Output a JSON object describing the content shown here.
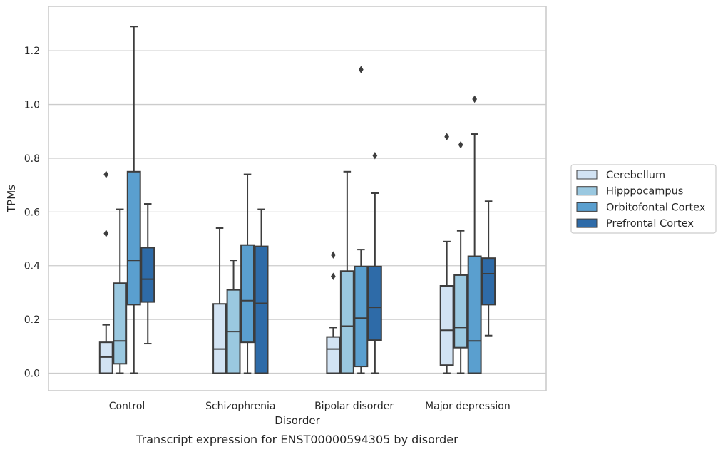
{
  "chart_data": {
    "type": "box",
    "xlabel": "Disorder",
    "ylabel": "TPMs",
    "caption": "Transcript expression for ENST00000594305 by disorder",
    "ylim": [
      -0.065,
      1.365
    ],
    "yticks": [
      0.0,
      0.2,
      0.4,
      0.6,
      0.8,
      1.0,
      1.2
    ],
    "grid": true,
    "legend_position": "right",
    "categories": [
      "Control",
      "Schizophrenia",
      "Bipolar disorder",
      "Major depression"
    ],
    "series": [
      {
        "name": "Cerebellum",
        "color": "#d2e3f3",
        "boxes": [
          {
            "whislo": 0.0,
            "q1": 0.0,
            "med": 0.06,
            "q3": 0.115,
            "whishi": 0.18,
            "fliers": [
              0.52,
              0.74
            ]
          },
          {
            "whislo": 0.0,
            "q1": 0.0,
            "med": 0.09,
            "q3": 0.258,
            "whishi": 0.54,
            "fliers": []
          },
          {
            "whislo": 0.0,
            "q1": 0.0,
            "med": 0.09,
            "q3": 0.135,
            "whishi": 0.17,
            "fliers": [
              0.36,
              0.44
            ]
          },
          {
            "whislo": 0.0,
            "q1": 0.03,
            "med": 0.16,
            "q3": 0.325,
            "whishi": 0.49,
            "fliers": [
              0.88
            ]
          }
        ]
      },
      {
        "name": "Hipppocampus",
        "color": "#9ac8e0",
        "boxes": [
          {
            "whislo": 0.0,
            "q1": 0.035,
            "med": 0.12,
            "q3": 0.335,
            "whishi": 0.61,
            "fliers": []
          },
          {
            "whislo": 0.0,
            "q1": 0.0,
            "med": 0.155,
            "q3": 0.31,
            "whishi": 0.42,
            "fliers": []
          },
          {
            "whislo": 0.0,
            "q1": 0.0,
            "med": 0.175,
            "q3": 0.38,
            "whishi": 0.75,
            "fliers": []
          },
          {
            "whislo": 0.0,
            "q1": 0.095,
            "med": 0.17,
            "q3": 0.365,
            "whishi": 0.53,
            "fliers": [
              0.85
            ]
          }
        ]
      },
      {
        "name": "Orbitofontal Cortex",
        "color": "#5a9fcf",
        "boxes": [
          {
            "whislo": 0.0,
            "q1": 0.255,
            "med": 0.42,
            "q3": 0.75,
            "whishi": 1.29,
            "fliers": []
          },
          {
            "whislo": 0.0,
            "q1": 0.115,
            "med": 0.27,
            "q3": 0.477,
            "whishi": 0.74,
            "fliers": []
          },
          {
            "whislo": 0.0,
            "q1": 0.025,
            "med": 0.205,
            "q3": 0.397,
            "whishi": 0.46,
            "fliers": [
              1.13
            ]
          },
          {
            "whislo": 0.0,
            "q1": 0.0,
            "med": 0.12,
            "q3": 0.435,
            "whishi": 0.89,
            "fliers": [
              1.02
            ]
          }
        ]
      },
      {
        "name": "Prefrontal Cortex",
        "color": "#2e6ba8",
        "boxes": [
          {
            "whislo": 0.11,
            "q1": 0.265,
            "med": 0.35,
            "q3": 0.467,
            "whishi": 0.63,
            "fliers": []
          },
          {
            "whislo": 0.0,
            "q1": 0.0,
            "med": 0.26,
            "q3": 0.472,
            "whishi": 0.61,
            "fliers": []
          },
          {
            "whislo": 0.0,
            "q1": 0.123,
            "med": 0.245,
            "q3": 0.397,
            "whishi": 0.67,
            "fliers": [
              0.81
            ]
          },
          {
            "whislo": 0.14,
            "q1": 0.255,
            "med": 0.37,
            "q3": 0.428,
            "whishi": 0.64,
            "fliers": []
          }
        ]
      }
    ]
  }
}
